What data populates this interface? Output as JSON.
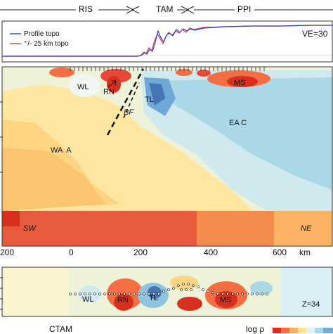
{
  "regions": [
    "RIS",
    "TAM",
    "PPI"
  ],
  "topo_legend": {
    "profile": "Profile topo",
    "offset": "⁺/- 25 km topo",
    "ve": "VE=30",
    "profile_color": "#2b3fd0",
    "offset_color": "#e0393f"
  },
  "main_section": {
    "labels": [
      "WL",
      "RN",
      "TL",
      "BF",
      "EA C",
      "MS",
      "WA  A",
      "SW",
      "NE"
    ],
    "x_ticks": [
      "200",
      "0",
      "200",
      "400",
      "600",
      "km"
    ]
  },
  "lower_section": {
    "labels": [
      "WL",
      "RN",
      "TL",
      "MS"
    ],
    "z_label": "Z=34"
  },
  "footer": {
    "left": "CTAM",
    "right": "log ρ"
  },
  "colors": {
    "warm_dark": "#d7301f",
    "warm_mid": "#f46d43",
    "warm_light": "#fdae61",
    "pale_yellow": "#fee090",
    "neutral": "#f2f2c8",
    "cool_light": "#d9eff3",
    "cool_mid": "#abd9e9",
    "cool_dark": "#4575b4"
  }
}
